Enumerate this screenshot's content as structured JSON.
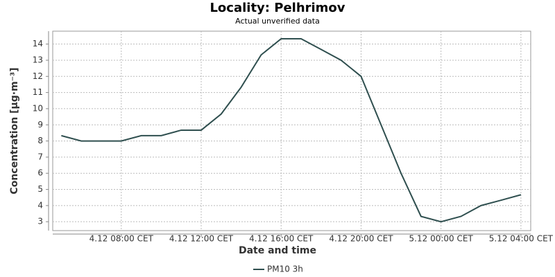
{
  "chart_data": {
    "type": "line",
    "title": "Locality: Pelhrimov",
    "subtitle": "Actual unverified data",
    "x_label": "Date and time",
    "y_label": "Concentration [µg·m⁻³]",
    "x": [
      5,
      6,
      7,
      8,
      9,
      10,
      11,
      12,
      13,
      14,
      15,
      16,
      17,
      18,
      19,
      20,
      21,
      22,
      23,
      24,
      25,
      26,
      27,
      28
    ],
    "series": [
      {
        "name": "PM10 3h",
        "color": "#2f4f4f",
        "values": [
          8.33,
          8.0,
          8.0,
          8.0,
          8.33,
          8.33,
          8.67,
          8.67,
          9.67,
          11.33,
          13.33,
          14.33,
          14.33,
          13.67,
          13.0,
          12.0,
          9.0,
          6.0,
          3.33,
          3.0,
          3.33,
          4.0,
          4.33,
          4.67
        ]
      }
    ],
    "xlim": [
      4.57,
      28.49
    ],
    "xticks": [
      {
        "value": 8,
        "label": "4.12 08:00 CET"
      },
      {
        "value": 12,
        "label": "4.12 12:00 CET"
      },
      {
        "value": 16,
        "label": "4.12 16:00 CET"
      },
      {
        "value": 20,
        "label": "4.12 20:00 CET"
      },
      {
        "value": 24,
        "label": "5.12 00:00 CET"
      },
      {
        "value": 28,
        "label": "5.12 04:00 CET"
      }
    ],
    "ylim": [
      2.45,
      14.8
    ],
    "yticks": [
      3,
      4,
      5,
      6,
      7,
      8,
      9,
      10,
      11,
      12,
      13,
      14
    ],
    "grid": true,
    "legend": "bottom"
  }
}
